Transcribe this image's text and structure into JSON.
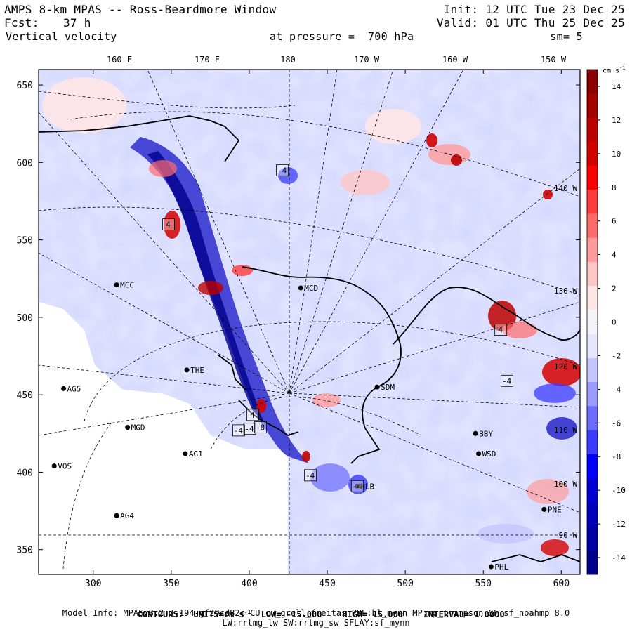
{
  "header": {
    "title": "AMPS 8-km MPAS -- Ross-Beardmore Window",
    "init": "Init: 12 UTC Tue 23 Dec 25",
    "fcst_label": "Fcst:",
    "fcst_value": "37 h",
    "valid": "Valid: 01 UTC Thu 25 Dec 25",
    "field": "Vertical velocity",
    "level": "at pressure =  700 hPa",
    "smoothing": "sm= 5"
  },
  "map": {
    "x_ticks": [
      300,
      350,
      400,
      450,
      500,
      550,
      600
    ],
    "y_ticks": [
      350,
      400,
      450,
      500,
      550,
      600,
      650
    ],
    "x_range": [
      265,
      612
    ],
    "y_range": [
      334,
      660
    ],
    "lon_labels_top": [
      "160 E",
      "170 E",
      "180",
      "170 W",
      "160 W",
      "150 W"
    ],
    "lon_labels_right": [
      "140 W",
      "130 W",
      "120 W",
      "110 W",
      "100 W",
      "90 W"
    ],
    "stations": [
      {
        "id": "MCC",
        "x": 315,
        "y": 521
      },
      {
        "id": "MCD",
        "x": 433,
        "y": 519
      },
      {
        "id": "THE",
        "x": 360,
        "y": 466
      },
      {
        "id": "AG5",
        "x": 281,
        "y": 454
      },
      {
        "id": "SDM",
        "x": 482,
        "y": 455
      },
      {
        "id": "MGD",
        "x": 322,
        "y": 429
      },
      {
        "id": "AG1",
        "x": 359,
        "y": 412
      },
      {
        "id": "VOS",
        "x": 275,
        "y": 404
      },
      {
        "id": "BBY",
        "x": 545,
        "y": 425
      },
      {
        "id": "WSD",
        "x": 547,
        "y": 412
      },
      {
        "id": "HLB",
        "x": 469,
        "y": 391
      },
      {
        "id": "AG4",
        "x": 315,
        "y": 372
      },
      {
        "id": "PNE",
        "x": 589,
        "y": 376
      },
      {
        "id": "PHL",
        "x": 555,
        "y": 339
      }
    ],
    "boxed_labels": [
      {
        "text": "-4",
        "x": 421,
        "y": 595
      },
      {
        "text": "4",
        "x": 348,
        "y": 560
      },
      {
        "text": "4",
        "x": 402,
        "y": 437
      },
      {
        "text": "-4",
        "x": 400,
        "y": 428
      },
      {
        "text": "-8",
        "x": 407,
        "y": 429
      },
      {
        "text": "-4",
        "x": 393,
        "y": 427
      },
      {
        "text": "-4",
        "x": 439,
        "y": 398
      },
      {
        "text": "-4",
        "x": 469,
        "y": 391
      },
      {
        "text": "-4",
        "x": 565,
        "y": 459
      },
      {
        "text": "4",
        "x": 561,
        "y": 492
      }
    ]
  },
  "colorbar": {
    "units_label": "cm s",
    "units_exp": "-1",
    "levels": [
      14,
      12,
      10,
      8,
      6,
      4,
      2,
      0,
      -2,
      -4,
      -6,
      -8,
      -10,
      -12,
      -14
    ],
    "colors": [
      "#8b0000",
      "#a30000",
      "#bd0000",
      "#d40000",
      "#ff0000",
      "#ff3b3b",
      "#ff6b6b",
      "#ff9b9b",
      "#ffc6c6",
      "#ffe6e6",
      "#f4f4f8",
      "#e6e6ff",
      "#c6c6ff",
      "#9b9bff",
      "#6b6bff",
      "#3b3bff",
      "#0000ff",
      "#0000d4",
      "#0000bd",
      "#0000a3",
      "#00008b"
    ]
  },
  "footer": {
    "contours_label": "CONTOURS:",
    "units": "UNITS=cm s",
    "units_exp": "-1",
    "low": "LOW= -15.000",
    "high": "HIGH= 15.000",
    "interval": "INTERVAL= 1.0000",
    "model_info": "Model Info: MPASv8.2.3-194-gf29cd82c CU:cu_grell_freitas PBL:bl_mynn MP:mp_thompson SF:sf_noahmp 8.0",
    "physics": "LW:rrtmg_lw SW:rrtmg_sw SFLAY:sf_mynn"
  }
}
